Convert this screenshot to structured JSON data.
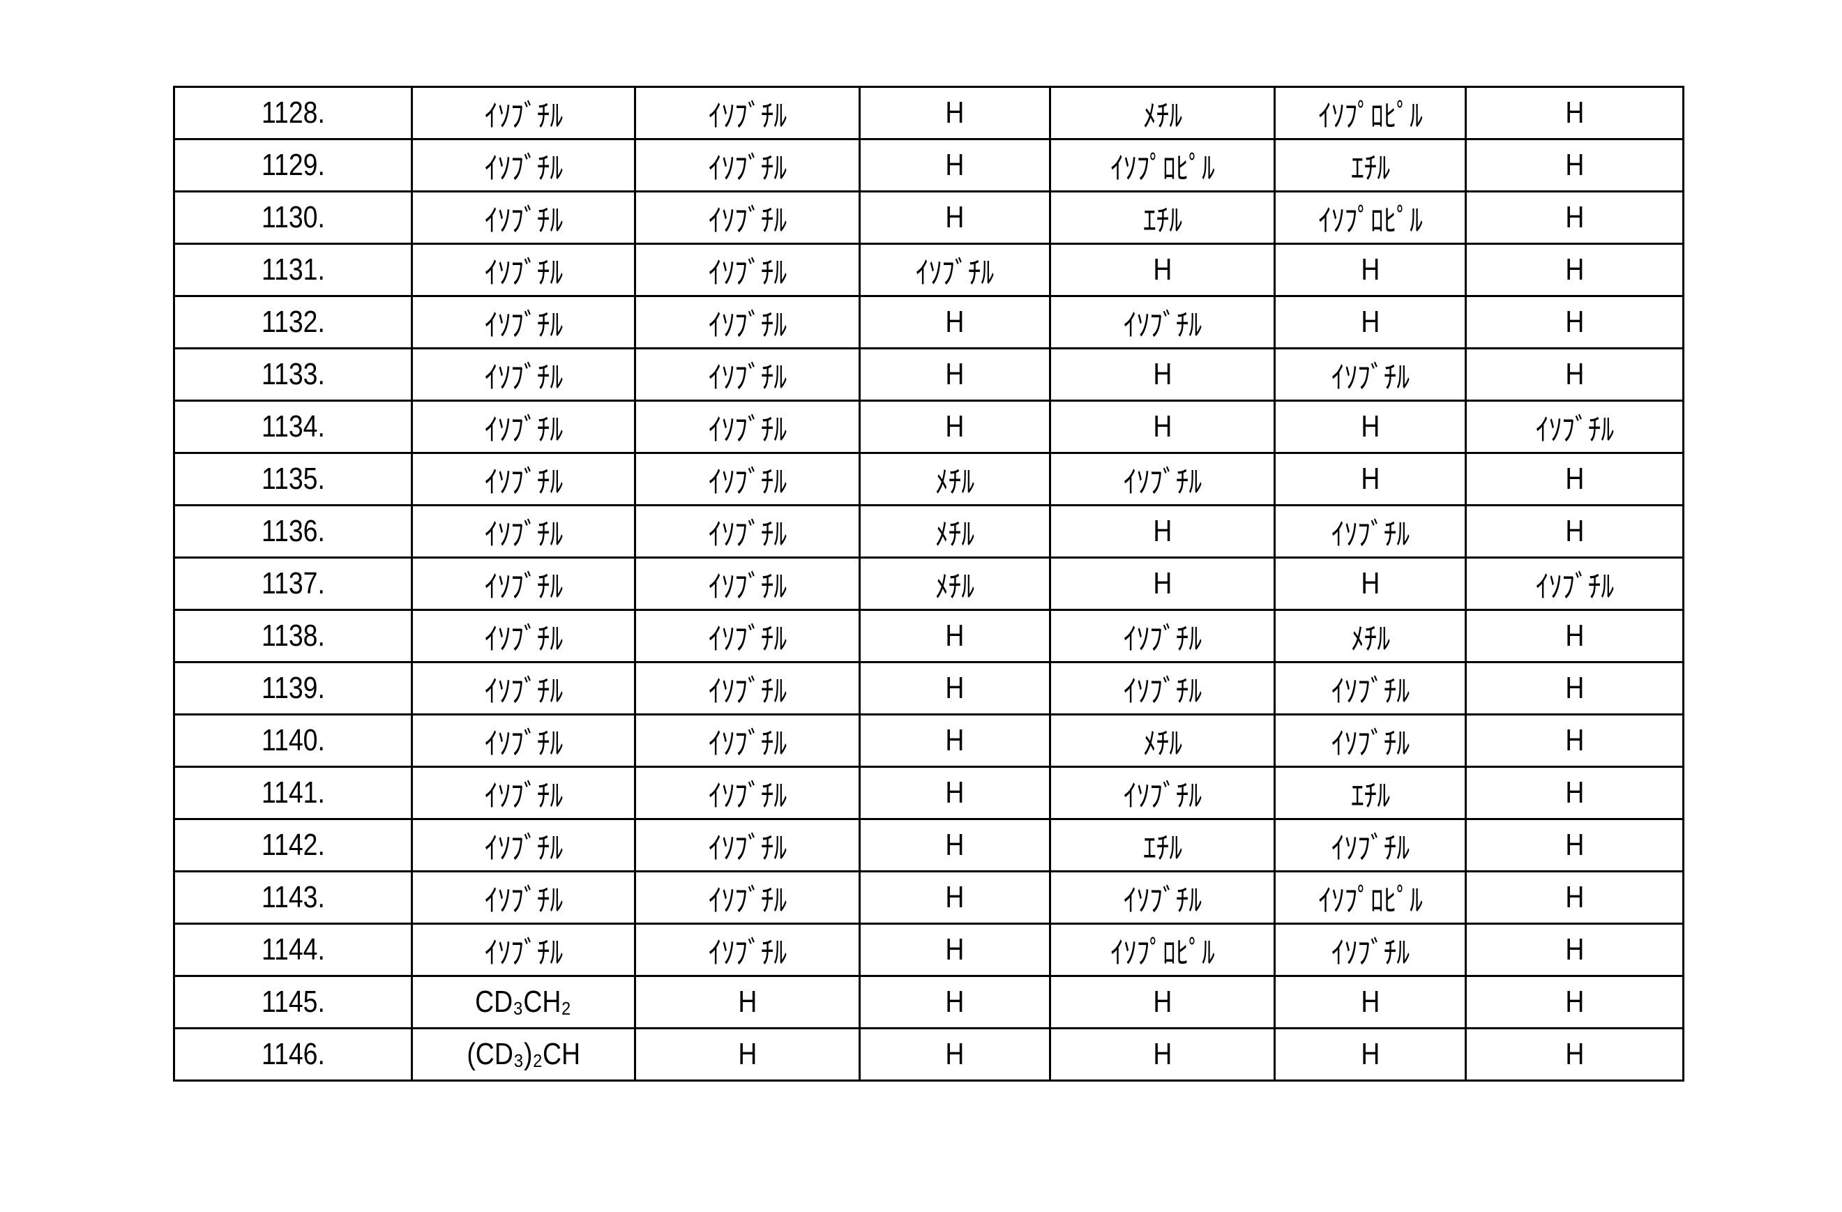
{
  "table": {
    "rows": [
      [
        "1128.",
        "ｲｿﾌﾞﾁﾙ",
        "ｲｿﾌﾞﾁﾙ",
        "H",
        "ﾒﾁﾙ",
        "ｲｿﾌﾟﾛﾋﾟﾙ",
        "H"
      ],
      [
        "1129.",
        "ｲｿﾌﾞﾁﾙ",
        "ｲｿﾌﾞﾁﾙ",
        "H",
        "ｲｿﾌﾟﾛﾋﾟﾙ",
        "ｴﾁﾙ",
        "H"
      ],
      [
        "1130.",
        "ｲｿﾌﾞﾁﾙ",
        "ｲｿﾌﾞﾁﾙ",
        "H",
        "ｴﾁﾙ",
        "ｲｿﾌﾟﾛﾋﾟﾙ",
        "H"
      ],
      [
        "1131.",
        "ｲｿﾌﾞﾁﾙ",
        "ｲｿﾌﾞﾁﾙ",
        "ｲｿﾌﾞﾁﾙ",
        "H",
        "H",
        "H"
      ],
      [
        "1132.",
        "ｲｿﾌﾞﾁﾙ",
        "ｲｿﾌﾞﾁﾙ",
        "H",
        "ｲｿﾌﾞﾁﾙ",
        "H",
        "H"
      ],
      [
        "1133.",
        "ｲｿﾌﾞﾁﾙ",
        "ｲｿﾌﾞﾁﾙ",
        "H",
        "H",
        "ｲｿﾌﾞﾁﾙ",
        "H"
      ],
      [
        "1134.",
        "ｲｿﾌﾞﾁﾙ",
        "ｲｿﾌﾞﾁﾙ",
        "H",
        "H",
        "H",
        "ｲｿﾌﾞﾁﾙ"
      ],
      [
        "1135.",
        "ｲｿﾌﾞﾁﾙ",
        "ｲｿﾌﾞﾁﾙ",
        "ﾒﾁﾙ",
        "ｲｿﾌﾞﾁﾙ",
        "H",
        "H"
      ],
      [
        "1136.",
        "ｲｿﾌﾞﾁﾙ",
        "ｲｿﾌﾞﾁﾙ",
        "ﾒﾁﾙ",
        "H",
        "ｲｿﾌﾞﾁﾙ",
        "H"
      ],
      [
        "1137.",
        "ｲｿﾌﾞﾁﾙ",
        "ｲｿﾌﾞﾁﾙ",
        "ﾒﾁﾙ",
        "H",
        "H",
        "ｲｿﾌﾞﾁﾙ"
      ],
      [
        "1138.",
        "ｲｿﾌﾞﾁﾙ",
        "ｲｿﾌﾞﾁﾙ",
        "H",
        "ｲｿﾌﾞﾁﾙ",
        "ﾒﾁﾙ",
        "H"
      ],
      [
        "1139.",
        "ｲｿﾌﾞﾁﾙ",
        "ｲｿﾌﾞﾁﾙ",
        "H",
        "ｲｿﾌﾞﾁﾙ",
        "ｲｿﾌﾞﾁﾙ",
        "H"
      ],
      [
        "1140.",
        "ｲｿﾌﾞﾁﾙ",
        "ｲｿﾌﾞﾁﾙ",
        "H",
        "ﾒﾁﾙ",
        "ｲｿﾌﾞﾁﾙ",
        "H"
      ],
      [
        "1141.",
        "ｲｿﾌﾞﾁﾙ",
        "ｲｿﾌﾞﾁﾙ",
        "H",
        "ｲｿﾌﾞﾁﾙ",
        "ｴﾁﾙ",
        "H"
      ],
      [
        "1142.",
        "ｲｿﾌﾞﾁﾙ",
        "ｲｿﾌﾞﾁﾙ",
        "H",
        "ｴﾁﾙ",
        "ｲｿﾌﾞﾁﾙ",
        "H"
      ],
      [
        "1143.",
        "ｲｿﾌﾞﾁﾙ",
        "ｲｿﾌﾞﾁﾙ",
        "H",
        "ｲｿﾌﾞﾁﾙ",
        "ｲｿﾌﾟﾛﾋﾟﾙ",
        "H"
      ],
      [
        "1144.",
        "ｲｿﾌﾞﾁﾙ",
        "ｲｿﾌﾞﾁﾙ",
        "H",
        "ｲｿﾌﾟﾛﾋﾟﾙ",
        "ｲｿﾌﾞﾁﾙ",
        "H"
      ],
      [
        "1145.",
        "CD₃CH₂",
        "H",
        "H",
        "H",
        "H",
        "H"
      ],
      [
        "1146.",
        "(CD₃)₂CH",
        "H",
        "H",
        "H",
        "H",
        "H"
      ]
    ]
  }
}
